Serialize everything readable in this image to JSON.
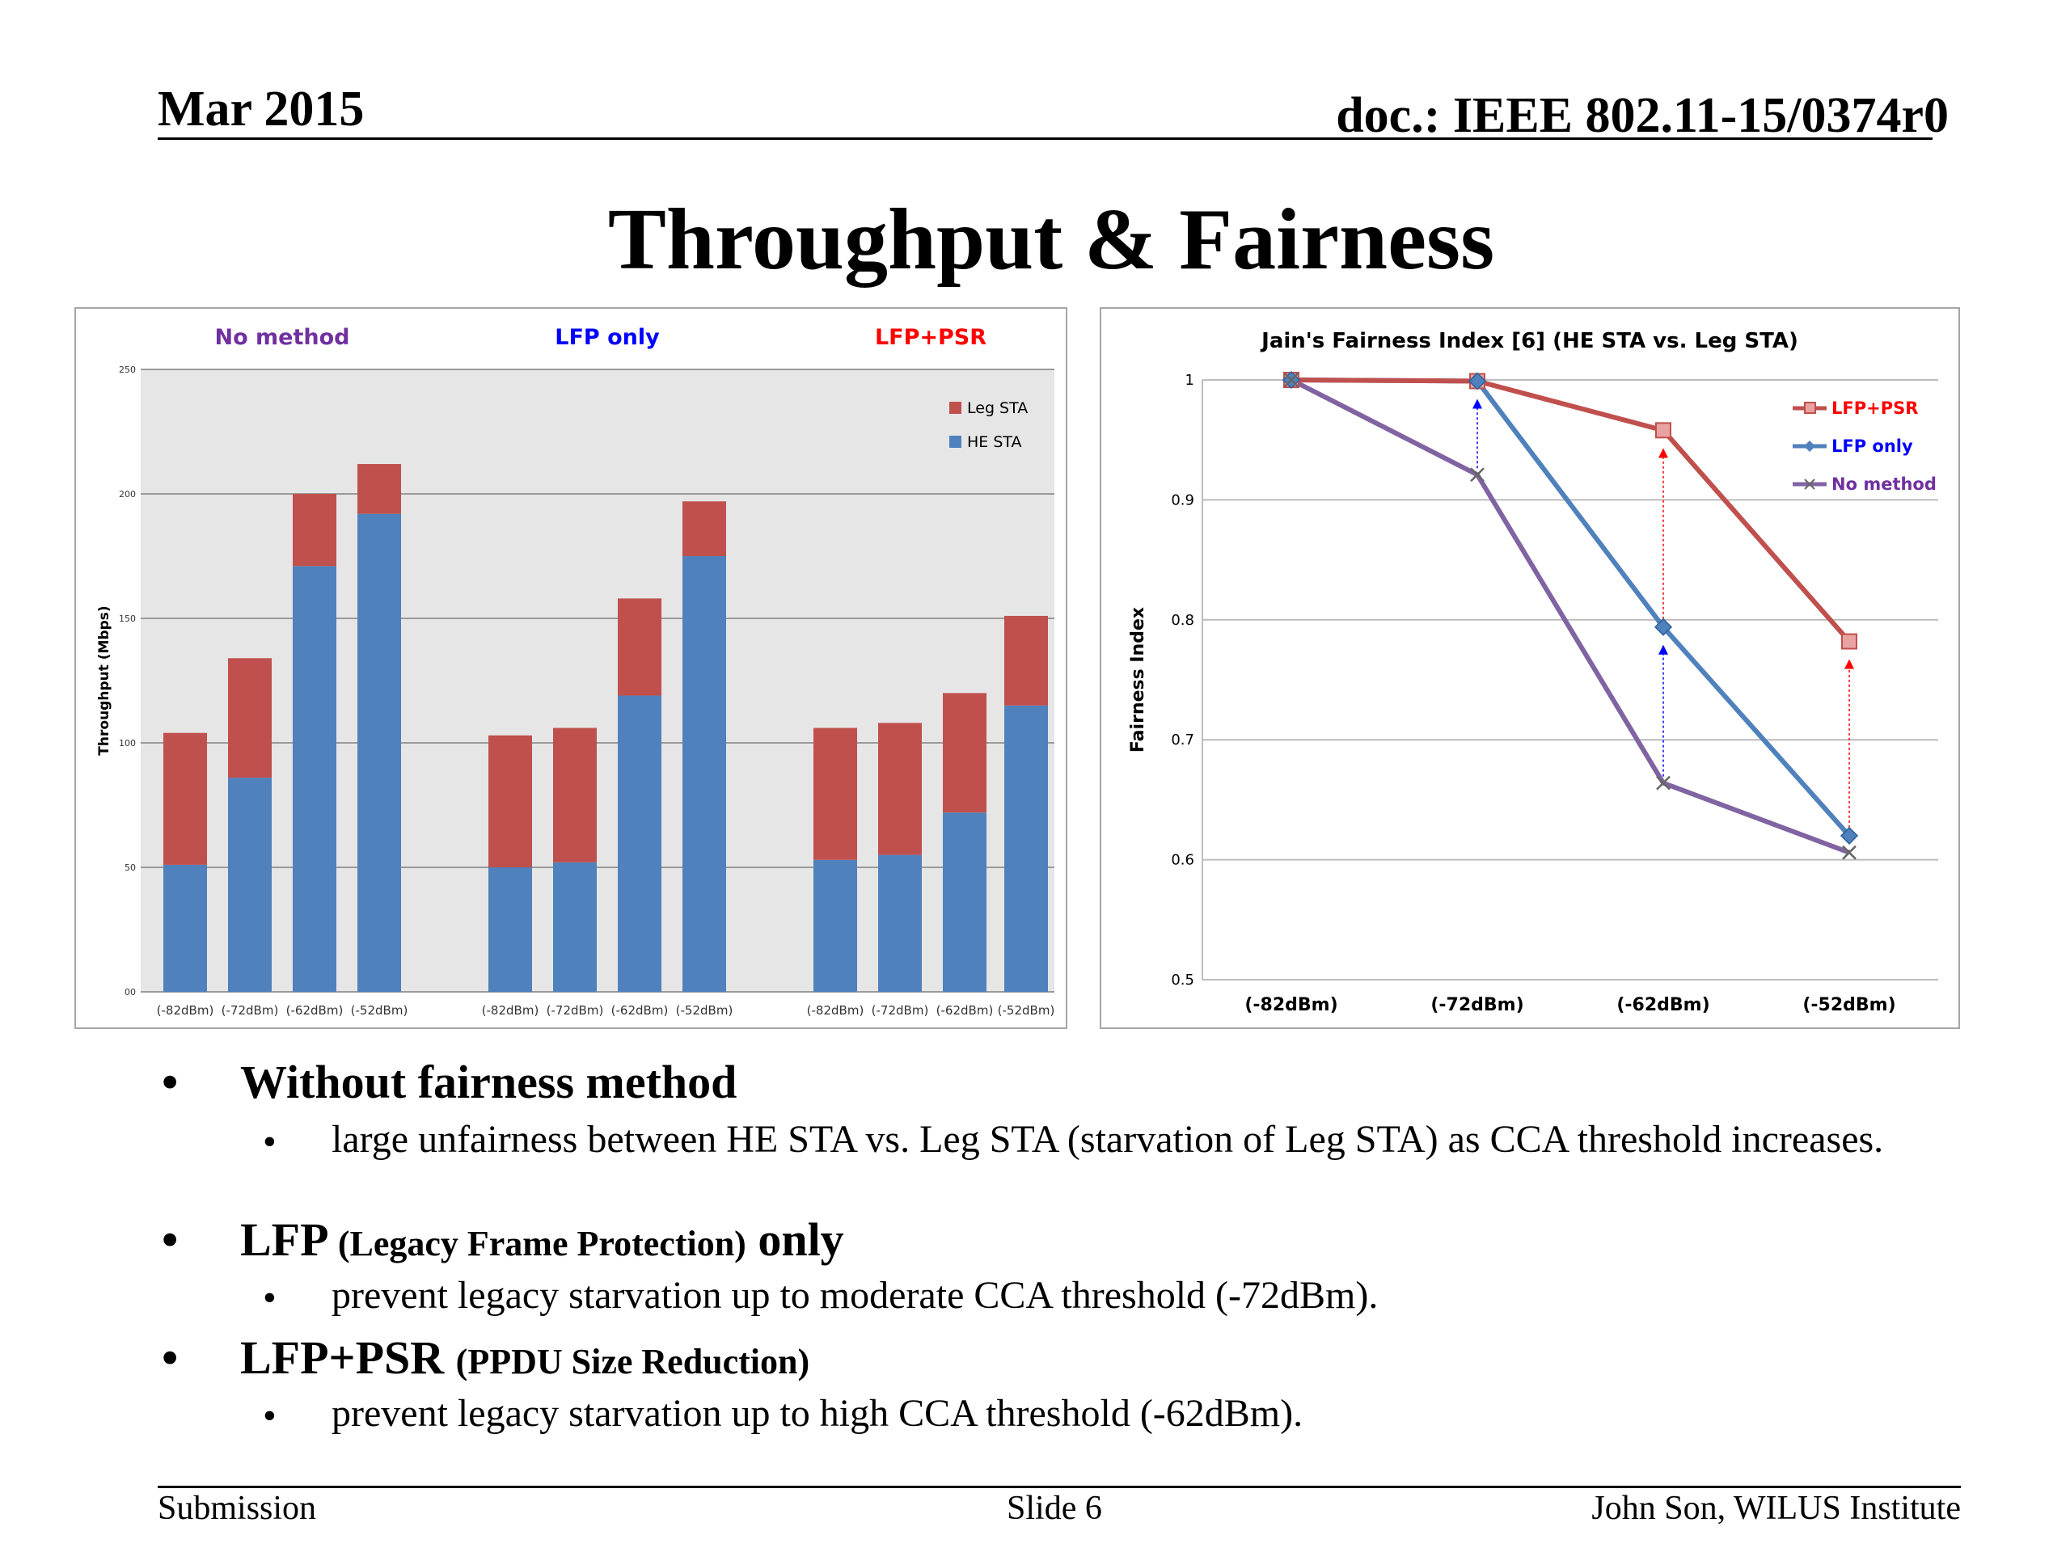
{
  "header": {
    "date": "Mar 2015",
    "doc": "doc.: IEEE 802.11-15/0374r0"
  },
  "title": "Throughput & Fairness",
  "colors": {
    "leg": "#c0504d",
    "he": "#4f81bd",
    "lfp_psr": "#c0504d",
    "lfp_only": "#4f81bd",
    "no_method": "#8064a2"
  },
  "chart_data": [
    {
      "type": "bar",
      "stacked": true,
      "group_labels": [
        "No method",
        "LFP only",
        "LFP+PSR"
      ],
      "group_label_colors": [
        "#7030a0",
        "#0000ff",
        "#ff0000"
      ],
      "categories": [
        "(-82dBm)",
        "(-72dBm)",
        "(-62dBm)",
        "(-52dBm)",
        "(-82dBm)",
        "(-72dBm)",
        "(-62dBm)",
        "(-52dBm)",
        "(-82dBm)",
        "(-72dBm)",
        "(-62dBm)",
        "(-52dBm)"
      ],
      "groups": [
        [
          0,
          1,
          2,
          3
        ],
        [
          4,
          5,
          6,
          7
        ],
        [
          8,
          9,
          10,
          11
        ]
      ],
      "series": [
        {
          "name": "HE STA",
          "values": [
            51,
            86,
            171,
            192,
            50,
            52,
            119,
            175,
            53,
            55,
            72,
            115
          ]
        },
        {
          "name": "Leg STA",
          "values": [
            53,
            48,
            29,
            20,
            53,
            54,
            39,
            22,
            53,
            53,
            48,
            36
          ]
        }
      ],
      "ylabel": "Throughput (Mbps)",
      "ylim": [
        0,
        250
      ],
      "yticks": [
        "00",
        "50",
        "100",
        "150",
        "200",
        "250"
      ],
      "grid": true,
      "legend": "top-right"
    },
    {
      "type": "line",
      "title": "Jain's Fairness Index [6] (HE STA vs. Leg STA)",
      "categories": [
        "(-82dBm)",
        "(-72dBm)",
        "(-62dBm)",
        "(-52dBm)"
      ],
      "series": [
        {
          "name": "LFP+PSR",
          "values": [
            1.0,
            0.999,
            0.958,
            0.782
          ],
          "marker": "square"
        },
        {
          "name": "LFP only",
          "values": [
            1.0,
            0.999,
            0.794,
            0.62
          ],
          "marker": "diamond"
        },
        {
          "name": "No method",
          "values": [
            1.0,
            0.921,
            0.664,
            0.606
          ],
          "marker": "x"
        }
      ],
      "ylabel": "Fairness Index",
      "ylim": [
        0.5,
        1.0
      ],
      "yticks": [
        "0.5",
        "0.6",
        "0.7",
        "0.8",
        "0.9",
        "1"
      ],
      "grid": true,
      "legend": "top-right"
    }
  ],
  "bullets": {
    "b1": {
      "text": "Without fairness method"
    },
    "b1_sub": "large unfairness between HE STA vs. Leg STA (starvation of Leg STA) as CCA threshold increases.",
    "b2": {
      "main": "LFP",
      "paren": "(Legacy Frame Protection)",
      "tail": "only"
    },
    "b2_sub": "prevent legacy starvation up to moderate CCA threshold (-72dBm).",
    "b3": {
      "main": "LFP+PSR",
      "paren": "(PPDU Size Reduction)"
    },
    "b3_sub": "prevent legacy starvation up to high CCA threshold (-62dBm).",
    "bullet_glyph": "•"
  },
  "footer": {
    "left": "Submission",
    "center": "Slide 6",
    "right": "John Son, WILUS Institute"
  }
}
